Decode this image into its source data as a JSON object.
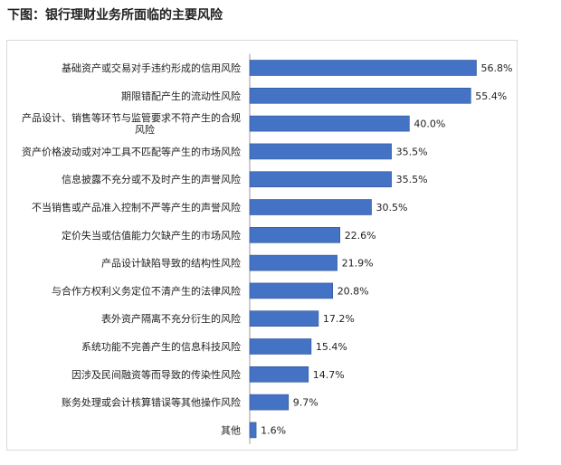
{
  "title": "下图：银行理财业务所面临的主要风险",
  "colors": {
    "bar": "#4472c4",
    "bar_border": "#2f5597",
    "axis": "#999999"
  },
  "chart_data": {
    "type": "bar",
    "orientation": "horizontal",
    "title": "",
    "xlabel": "",
    "ylabel": "",
    "xlim": [
      0,
      60
    ],
    "grid": false,
    "legend": "none",
    "categories": [
      [
        "基础资产或交易对手违约形成的信用风险"
      ],
      [
        "期限错配产生的流动性风险"
      ],
      [
        "产品设计、销售等环节与监管要求不符产生的合规",
        "风险"
      ],
      [
        "资产价格波动或对冲工具不匹配等产生的市场风险"
      ],
      [
        "信息披露不充分或不及时产生的声誉风险"
      ],
      [
        "不当销售或产品准入控制不严等产生的声誉风险"
      ],
      [
        "定价失当或估值能力欠缺产生的市场风险"
      ],
      [
        "产品设计缺陷导致的结构性风险"
      ],
      [
        "与合作方权利义务定位不清产生的法律风险"
      ],
      [
        "表外资产隔离不充分衍生的风险"
      ],
      [
        "系统功能不完善产生的信息科技风险"
      ],
      [
        "因涉及民间融资等而导致的传染性风险"
      ],
      [
        "账务处理或会计核算错误等其他操作风险"
      ],
      [
        "其他"
      ]
    ],
    "values": [
      56.8,
      55.4,
      40.0,
      35.5,
      35.5,
      30.5,
      22.6,
      21.9,
      20.8,
      17.2,
      15.4,
      14.7,
      9.7,
      1.6
    ],
    "value_labels": [
      "56.8%",
      "55.4%",
      "40.0%",
      "35.5%",
      "35.5%",
      "30.5%",
      "22.6%",
      "21.9%",
      "20.8%",
      "17.2%",
      "15.4%",
      "14.7%",
      "9.7%",
      "1.6%"
    ]
  }
}
